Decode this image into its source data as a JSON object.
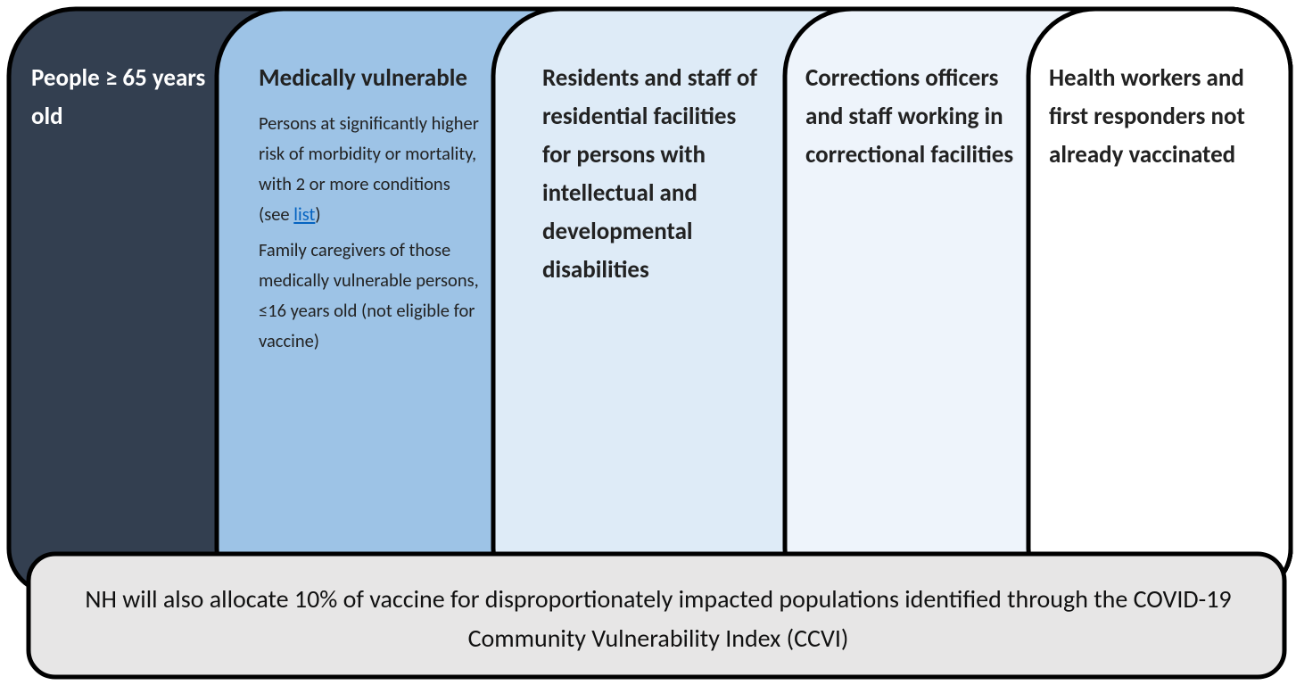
{
  "columns": [
    {
      "title": "People ≥ 65 years old",
      "paragraphs": []
    },
    {
      "title": "Medically vulnerable",
      "paragraphs": [
        {
          "before": "Persons at significantly higher risk of morbidity or mortality, with 2 or more conditions (see ",
          "link": "list",
          "after": ")"
        },
        {
          "before": "Family caregivers of those medically vulnerable persons, ≤16 years old (not eligible for vaccine)"
        }
      ]
    },
    {
      "title": "Residents and staff of residential facilities for persons with intellectual and developmental disabilities",
      "paragraphs": []
    },
    {
      "title": "Corrections officers and staff working in correctional facilities",
      "paragraphs": []
    },
    {
      "title": "Health workers and first responders not already vaccinated",
      "paragraphs": []
    }
  ],
  "footer": "NH will also allocate 10% of vaccine for disproportionately impacted populations identified through the COVID-19 Community Vulnerability Index (CCVI)"
}
